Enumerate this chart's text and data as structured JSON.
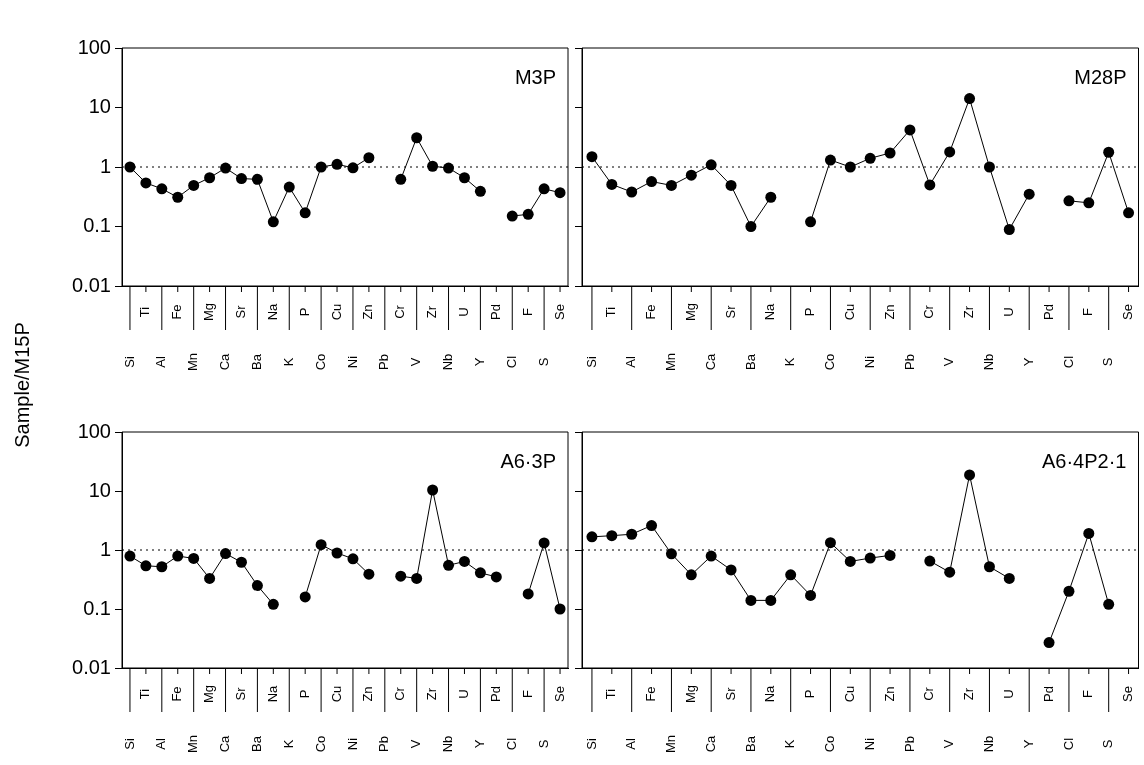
{
  "chart_data": [
    {
      "type": "line",
      "title": "M3P",
      "ylabel": "Sample/M15P",
      "log": "y",
      "marker": "circle",
      "line_style": "solid",
      "ylim": [
        0.01,
        100
      ],
      "yticks": [
        0.01,
        0.1,
        1,
        10,
        100
      ],
      "categories": [
        "Si",
        "Ti",
        "Al",
        "Fe",
        "Mn",
        "Mg",
        "Ca",
        "Sr",
        "Ba",
        "Na",
        "K",
        "P",
        "Co",
        "Cu",
        "Ni",
        "Zn",
        "Pb",
        "Cr",
        "V",
        "Zr",
        "Nb",
        "U",
        "Y",
        "Pd",
        "Cl",
        "F",
        "S",
        "Se"
      ],
      "series": [
        {
          "color": "#000000",
          "values": [
            1.0,
            0.54,
            0.43,
            0.31,
            0.49,
            0.66,
            0.96,
            0.64,
            0.62,
            0.12,
            0.46,
            0.17,
            1.0,
            1.11,
            0.97,
            1.43,
            null,
            0.62,
            3.1,
            1.03,
            0.96,
            0.66,
            0.39,
            null,
            0.15,
            0.16,
            0.43,
            0.37
          ]
        }
      ],
      "ref_lines": [
        {
          "axis": "y",
          "value": 1,
          "line_style": "dotted"
        }
      ]
    },
    {
      "type": "line",
      "title": "M28P",
      "log": "y",
      "marker": "circle",
      "line_style": "solid",
      "ylim": [
        0.01,
        100
      ],
      "yticks": [
        0.01,
        0.1,
        1,
        10,
        100
      ],
      "tick_labels": "x",
      "categories": [
        "Si",
        "Ti",
        "Al",
        "Fe",
        "Mn",
        "Mg",
        "Ca",
        "Sr",
        "Ba",
        "Na",
        "K",
        "P",
        "Co",
        "Cu",
        "Ni",
        "Zn",
        "Pb",
        "Cr",
        "V",
        "Zr",
        "Nb",
        "U",
        "Y",
        "Pd",
        "Cl",
        "F",
        "S",
        "Se"
      ],
      "series": [
        {
          "color": "#000000",
          "values": [
            1.49,
            0.51,
            0.38,
            0.57,
            0.49,
            0.73,
            1.09,
            0.49,
            0.1,
            0.31,
            null,
            0.12,
            1.31,
            1.0,
            1.4,
            1.72,
            4.2,
            0.5,
            1.79,
            14.1,
            1.0,
            0.089,
            0.35,
            null,
            0.27,
            0.25,
            1.77,
            0.17
          ]
        }
      ],
      "ref_lines": [
        {
          "axis": "y",
          "value": 1,
          "line_style": "dotted"
        }
      ]
    },
    {
      "type": "line",
      "title": "A6·3P",
      "log": "y",
      "marker": "circle",
      "line_style": "solid",
      "ylim": [
        0.01,
        100
      ],
      "yticks": [
        0.01,
        0.1,
        1,
        10,
        100
      ],
      "categories": [
        "Si",
        "Ti",
        "Al",
        "Fe",
        "Mn",
        "Mg",
        "Ca",
        "Sr",
        "Ba",
        "Na",
        "K",
        "P",
        "Co",
        "Cu",
        "Ni",
        "Zn",
        "Pb",
        "Cr",
        "V",
        "Zr",
        "Nb",
        "U",
        "Y",
        "Pd",
        "Cl",
        "F",
        "S",
        "Se"
      ],
      "series": [
        {
          "color": "#000000",
          "values": [
            0.79,
            0.54,
            0.52,
            0.79,
            0.72,
            0.33,
            0.87,
            0.62,
            0.25,
            0.12,
            null,
            0.16,
            1.23,
            0.89,
            0.71,
            0.39,
            null,
            0.36,
            0.33,
            10.4,
            0.55,
            0.64,
            0.41,
            0.35,
            null,
            0.18,
            1.32,
            0.1
          ]
        }
      ],
      "ref_lines": [
        {
          "axis": "y",
          "value": 1,
          "line_style": "dotted"
        }
      ]
    },
    {
      "type": "line",
      "title": "A6·4P2·1",
      "log": "y",
      "marker": "circle",
      "line_style": "solid",
      "ylim": [
        0.01,
        100
      ],
      "yticks": [
        0.01,
        0.1,
        1,
        10,
        100
      ],
      "tick_labels": "x",
      "categories": [
        "Si",
        "Ti",
        "Al",
        "Fe",
        "Mn",
        "Mg",
        "Ca",
        "Sr",
        "Ba",
        "Na",
        "K",
        "P",
        "Co",
        "Cu",
        "Ni",
        "Zn",
        "Pb",
        "Cr",
        "V",
        "Zr",
        "Nb",
        "U",
        "Y",
        "Pd",
        "Cl",
        "F",
        "S",
        "Se"
      ],
      "series": [
        {
          "color": "#000000",
          "values": [
            1.67,
            1.75,
            1.85,
            2.6,
            0.86,
            0.38,
            0.79,
            0.46,
            0.14,
            0.14,
            0.38,
            0.17,
            1.33,
            0.64,
            0.73,
            0.81,
            null,
            0.65,
            0.42,
            18.7,
            0.52,
            0.33,
            null,
            0.027,
            0.2,
            1.91,
            0.12,
            null
          ]
        }
      ],
      "ref_lines": [
        {
          "axis": "y",
          "value": 1,
          "line_style": "dotted"
        }
      ]
    }
  ]
}
